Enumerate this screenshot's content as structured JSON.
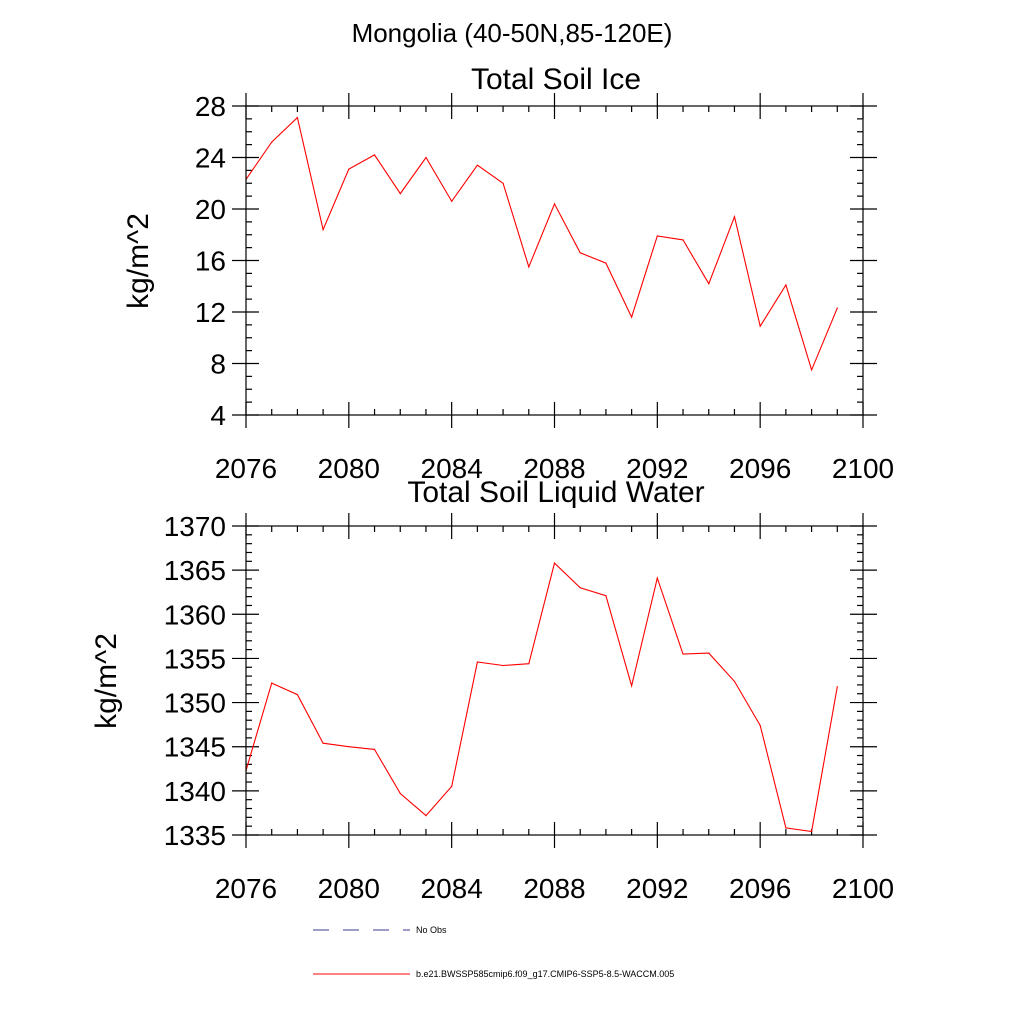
{
  "figure": {
    "suptitle": "Mongolia (40-50N,85-120E)"
  },
  "chart_data": [
    {
      "type": "line",
      "title": "Total Soil Ice",
      "xlabel": "",
      "ylabel": "kg/m^2",
      "xlim": [
        2076,
        2100
      ],
      "ylim": [
        4,
        28
      ],
      "x_ticks": [
        2076,
        2080,
        2084,
        2088,
        2092,
        2096,
        2100
      ],
      "y_ticks": [
        4,
        8,
        12,
        16,
        20,
        24,
        28
      ],
      "x_minor_step": 1,
      "y_minor_step": 1,
      "grid": false,
      "series": [
        {
          "name": "b.e21.BWSSP585cmip6.f09_g17.CMIP6-SSP5-8.5-WACCM.005",
          "color": "#ff0000",
          "x": [
            2076,
            2077,
            2078,
            2079,
            2080,
            2081,
            2082,
            2083,
            2084,
            2085,
            2086,
            2087,
            2088,
            2089,
            2090,
            2091,
            2092,
            2093,
            2094,
            2095,
            2096,
            2097,
            2098,
            2099
          ],
          "values": [
            22.3,
            25.2,
            27.1,
            18.4,
            23.1,
            24.2,
            21.2,
            24.0,
            20.6,
            23.4,
            22.0,
            15.5,
            20.4,
            16.6,
            15.8,
            11.6,
            17.9,
            17.6,
            14.2,
            19.4,
            10.9,
            14.1,
            7.5,
            12.3
          ]
        }
      ]
    },
    {
      "type": "line",
      "title": "Total Soil Liquid Water",
      "xlabel": "",
      "ylabel": "kg/m^2",
      "xlim": [
        2076,
        2100
      ],
      "ylim": [
        1335,
        1370
      ],
      "x_ticks": [
        2076,
        2080,
        2084,
        2088,
        2092,
        2096,
        2100
      ],
      "y_ticks": [
        1335,
        1340,
        1345,
        1350,
        1355,
        1360,
        1365,
        1370
      ],
      "x_minor_step": 1,
      "y_minor_step": 1,
      "grid": false,
      "series": [
        {
          "name": "b.e21.BWSSP585cmip6.f09_g17.CMIP6-SSP5-8.5-WACCM.005",
          "color": "#ff0000",
          "x": [
            2076,
            2077,
            2078,
            2079,
            2080,
            2081,
            2082,
            2083,
            2084,
            2085,
            2086,
            2087,
            2088,
            2089,
            2090,
            2091,
            2092,
            2093,
            2094,
            2095,
            2096,
            2097,
            2098,
            2099
          ],
          "values": [
            1342.3,
            1352.2,
            1350.9,
            1345.4,
            1345.0,
            1344.7,
            1339.7,
            1337.2,
            1340.5,
            1354.6,
            1354.2,
            1354.4,
            1365.8,
            1363.0,
            1362.1,
            1351.9,
            1364.1,
            1355.5,
            1355.6,
            1352.4,
            1347.4,
            1335.8,
            1335.4,
            1351.8
          ]
        }
      ]
    }
  ],
  "legend": {
    "placement": "bottom-center",
    "entries": [
      {
        "label": "No Obs",
        "color": "#3b3b8f",
        "style": "dashed"
      },
      {
        "label": "b.e21.BWSSP585cmip6.f09_g17.CMIP6-SSP5-8.5-WACCM.005",
        "color": "#ff0000",
        "style": "solid"
      }
    ]
  }
}
